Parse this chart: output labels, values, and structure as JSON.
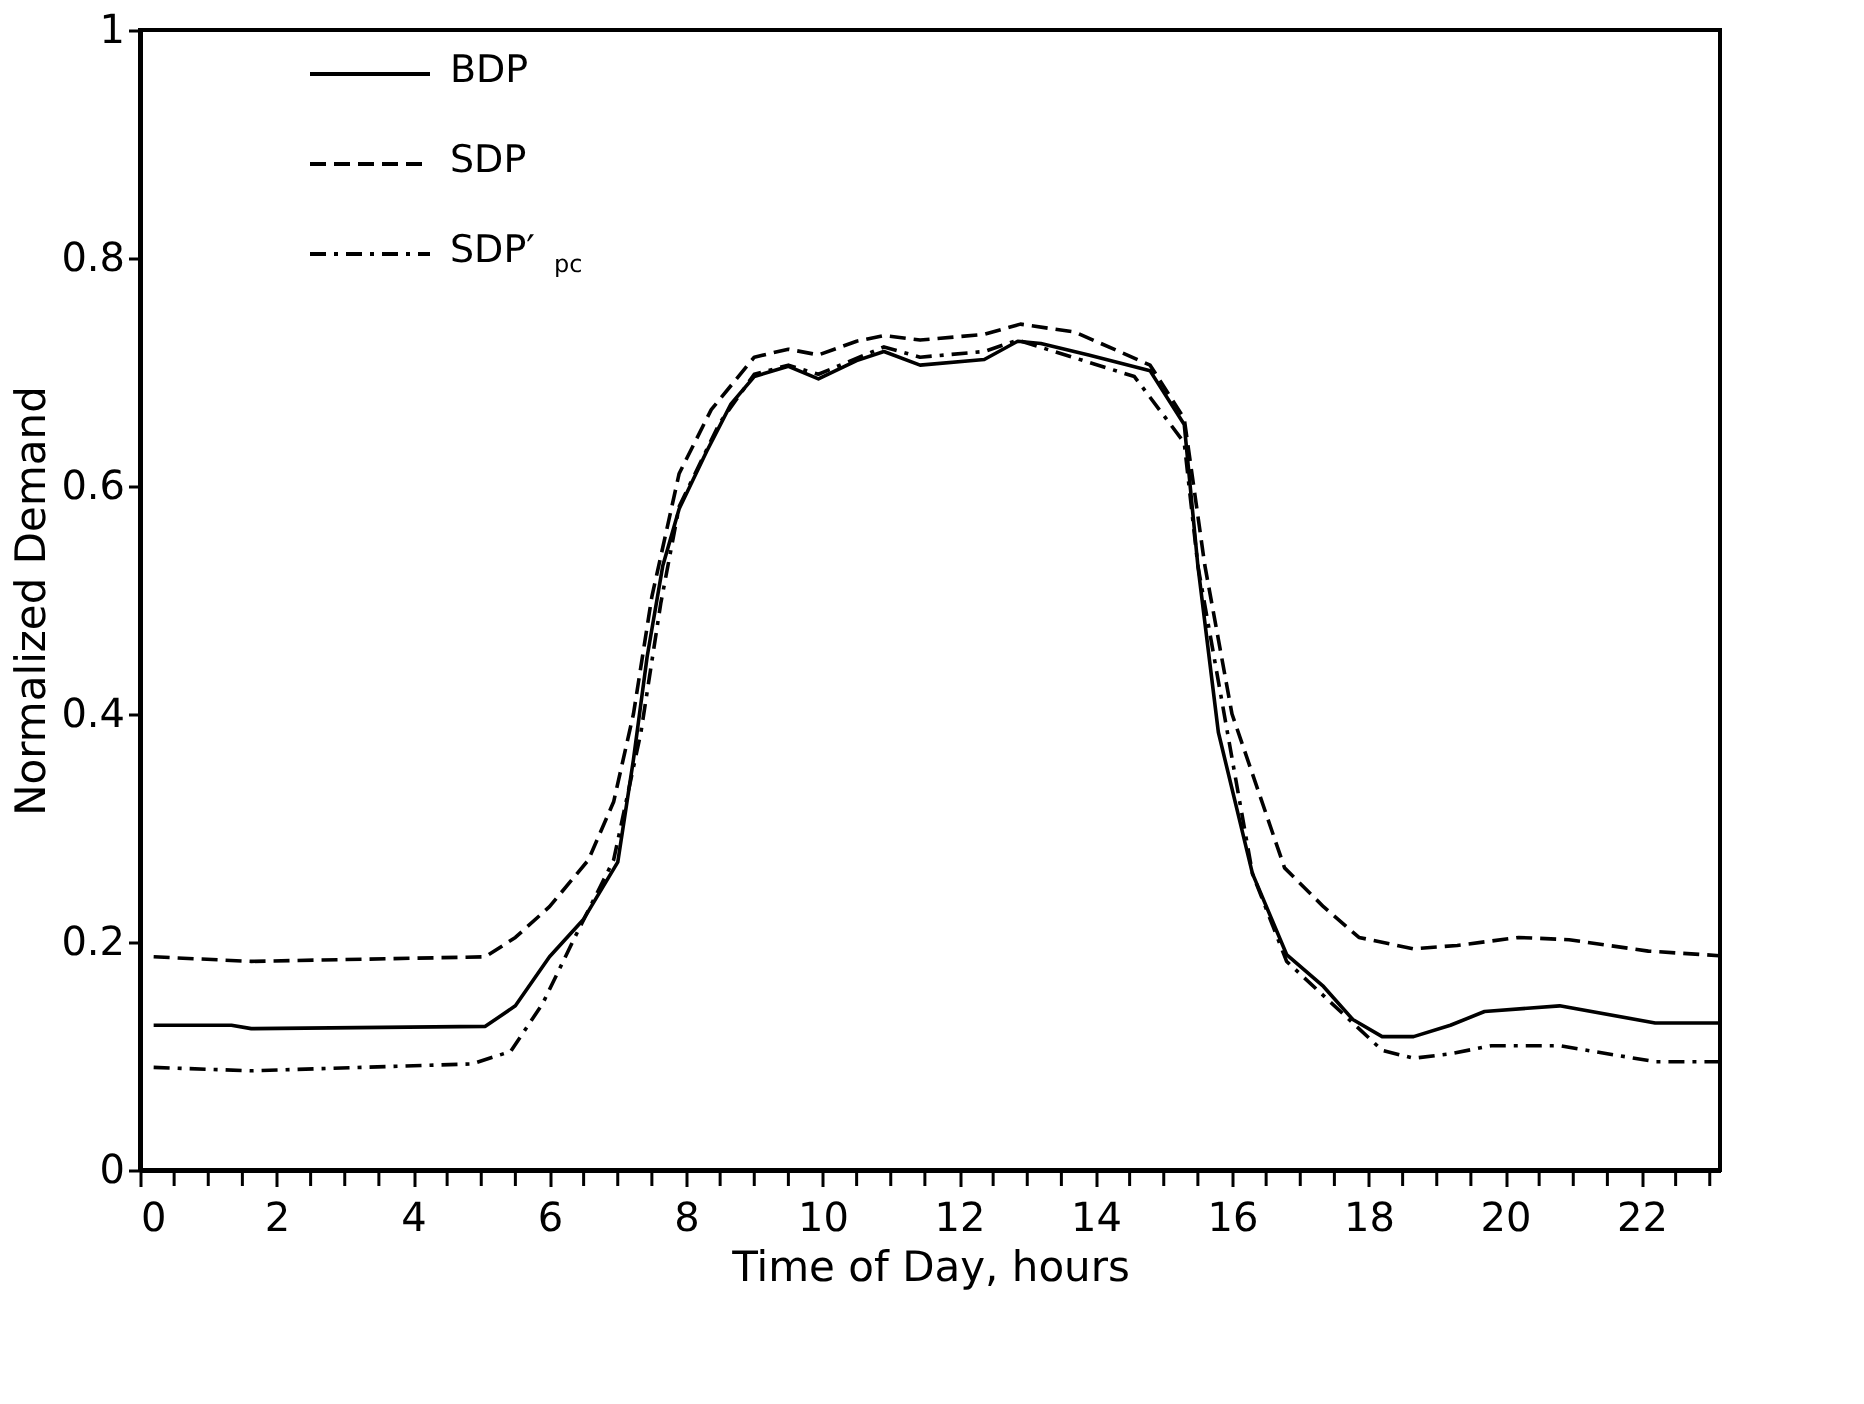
{
  "chart_data": {
    "type": "line",
    "xlabel": "Time of Day, hours",
    "ylabel": "Normalized Demand",
    "xlim": [
      0,
      23.15
    ],
    "ylim": [
      0,
      1
    ],
    "xticks": [
      0,
      {
        "value": 0.5,
        "label": null
      },
      2,
      {
        "value": 1,
        "label": null
      },
      {
        "value": 1.5,
        "label": null
      },
      {
        "value": 2.5,
        "label": null
      },
      {
        "value": 3,
        "label": null
      },
      {
        "value": 3.5,
        "label": null
      },
      4,
      {
        "value": 4.5,
        "label": null
      },
      {
        "value": 5,
        "label": null
      },
      {
        "value": 5.5,
        "label": null
      },
      6,
      {
        "value": 6.5,
        "label": null
      },
      {
        "value": 7,
        "label": null
      },
      {
        "value": 7.5,
        "label": null
      },
      8,
      {
        "value": 8.5,
        "label": null
      },
      {
        "value": 9,
        "label": null
      },
      {
        "value": 9.5,
        "label": null
      },
      10,
      {
        "value": 10.5,
        "label": null
      },
      {
        "value": 11,
        "label": null
      },
      {
        "value": 11.5,
        "label": null
      },
      12,
      {
        "value": 12.5,
        "label": null
      },
      {
        "value": 13,
        "label": null
      },
      {
        "value": 13.5,
        "label": null
      },
      14,
      {
        "value": 14.5,
        "label": null
      },
      {
        "value": 15,
        "label": null
      },
      {
        "value": 15.5,
        "label": null
      },
      16,
      {
        "value": 16.5,
        "label": null
      },
      {
        "value": 17,
        "label": null
      },
      {
        "value": 17.5,
        "label": null
      },
      18,
      {
        "value": 18.5,
        "label": null
      },
      {
        "value": 19,
        "label": null
      },
      {
        "value": 19.5,
        "label": null
      },
      20,
      {
        "value": 20.5,
        "label": null
      },
      {
        "value": 21,
        "label": null
      },
      {
        "value": 21.5,
        "label": null
      },
      22,
      {
        "value": 22.5,
        "label": null
      },
      {
        "value": 23,
        "label": null
      }
    ],
    "yticks": [
      0,
      0.2,
      0.4,
      0.6,
      0.8,
      1
    ],
    "grid": false,
    "legend": "top left",
    "marker": "none",
    "series": [
      {
        "name": "BDP",
        "color": "#000000",
        "line_style": "solid",
        "x": [
          0.2,
          1.34,
          1.63,
          5.06,
          5.5,
          6.0,
          6.5,
          7.0,
          7.23,
          7.43,
          7.66,
          7.9,
          8.3,
          8.66,
          9.0,
          9.5,
          9.94,
          10.5,
          10.9,
          11.43,
          12.37,
          12.86,
          13.2,
          13.9,
          14.8,
          15.3,
          15.5,
          15.8,
          16.3,
          16.8,
          17.34,
          17.77,
          18.2,
          18.66,
          19.2,
          19.7,
          20.8,
          22.2,
          23.14
        ],
        "values": [
          0.127,
          0.127,
          0.124,
          0.126,
          0.144,
          0.187,
          0.22,
          0.27,
          0.36,
          0.45,
          0.53,
          0.58,
          0.63,
          0.672,
          0.696,
          0.705,
          0.694,
          0.71,
          0.718,
          0.706,
          0.711,
          0.727,
          0.725,
          0.715,
          0.701,
          0.654,
          0.53,
          0.384,
          0.26,
          0.189,
          0.161,
          0.132,
          0.117,
          0.117,
          0.127,
          0.139,
          0.144,
          0.129,
          0.129
        ]
      },
      {
        "name": "SDP",
        "color": "#000000",
        "line_style": "dashed",
        "x": [
          0.2,
          1.63,
          5.06,
          5.5,
          6.0,
          6.57,
          6.94,
          7.23,
          7.5,
          7.9,
          8.37,
          9.0,
          9.5,
          9.94,
          10.5,
          10.9,
          11.43,
          12.37,
          12.9,
          13.7,
          14.8,
          15.3,
          15.6,
          16.0,
          16.77,
          17.34,
          17.86,
          18.66,
          19.3,
          20.2,
          20.94,
          22.1,
          23.14
        ],
        "values": [
          0.187,
          0.183,
          0.187,
          0.204,
          0.231,
          0.272,
          0.323,
          0.4,
          0.503,
          0.611,
          0.667,
          0.713,
          0.72,
          0.715,
          0.727,
          0.732,
          0.728,
          0.733,
          0.742,
          0.735,
          0.706,
          0.659,
          0.531,
          0.4,
          0.265,
          0.231,
          0.204,
          0.194,
          0.197,
          0.204,
          0.202,
          0.192,
          0.188
        ]
      },
      {
        "name": "SDP′$_{pc}$",
        "color": "#000000",
        "line_style": "dashdot",
        "x": [
          0.2,
          1.63,
          4.86,
          5.43,
          5.9,
          6.37,
          6.94,
          7.34,
          7.63,
          7.9,
          8.49,
          9.0,
          9.5,
          9.94,
          10.9,
          11.43,
          12.37,
          12.86,
          14.57,
          15.3,
          15.5,
          16.3,
          16.8,
          17.34,
          18.2,
          18.66,
          19.2,
          19.8,
          20.8,
          22.2,
          23.14
        ],
        "values": [
          0.09,
          0.087,
          0.093,
          0.104,
          0.146,
          0.204,
          0.272,
          0.384,
          0.497,
          0.582,
          0.655,
          0.698,
          0.706,
          0.698,
          0.722,
          0.713,
          0.718,
          0.728,
          0.696,
          0.638,
          0.53,
          0.26,
          0.183,
          0.153,
          0.105,
          0.098,
          0.102,
          0.109,
          0.109,
          0.095,
          0.095
        ]
      }
    ]
  }
}
